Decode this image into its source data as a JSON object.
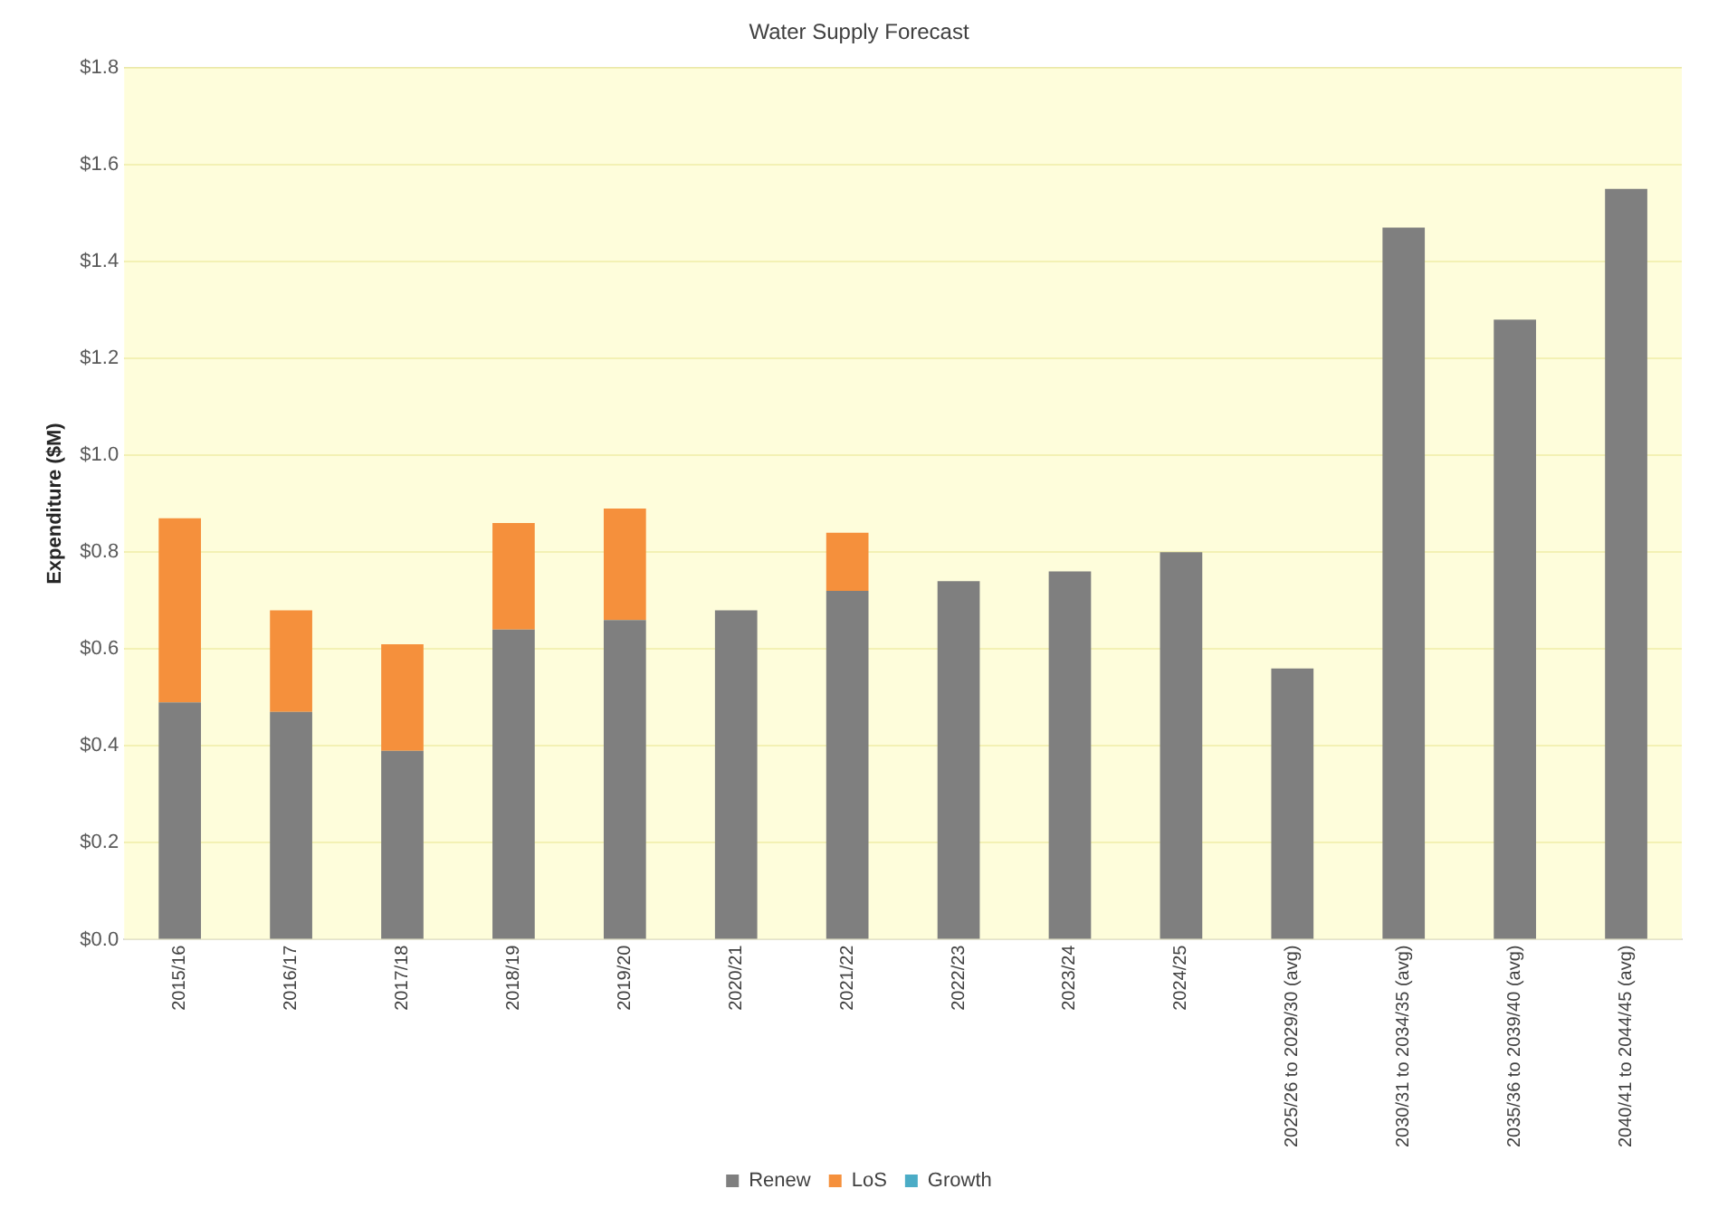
{
  "chart_data": {
    "type": "bar",
    "title": "Water Supply Forecast",
    "ylabel": "Expenditure ($M)",
    "categories": [
      "2015/16",
      "2016/17",
      "2017/18",
      "2018/19",
      "2019/20",
      "2020/21",
      "2021/22",
      "2022/23",
      "2023/24",
      "2024/25",
      "2025/26 to 2029/30 (avg)",
      "2030/31 to 2034/35 (avg)",
      "2035/36 to 2039/40 (avg)",
      "2040/41 to 2044/45 (avg)"
    ],
    "series": [
      {
        "name": "Renew",
        "color": "#7f7f7f",
        "values": [
          0.49,
          0.47,
          0.39,
          0.64,
          0.66,
          0.68,
          0.72,
          0.74,
          0.76,
          0.8,
          0.56,
          1.47,
          1.28,
          1.55
        ]
      },
      {
        "name": "LoS",
        "color": "#f5903c",
        "values": [
          0.38,
          0.21,
          0.22,
          0.22,
          0.23,
          null,
          0.12,
          null,
          null,
          null,
          null,
          null,
          null,
          null
        ]
      },
      {
        "name": "Growth",
        "color": "#4bacc6",
        "values": [
          null,
          null,
          null,
          null,
          null,
          null,
          null,
          null,
          null,
          null,
          null,
          null,
          null,
          null
        ]
      }
    ],
    "stacked": true,
    "ylim": [
      0,
      1.8
    ],
    "yticks": [
      {
        "value": 0,
        "label": "$0.0"
      },
      {
        "value": 0.2,
        "label": "$0.2"
      },
      {
        "value": 0.4,
        "label": "$0.4"
      },
      {
        "value": 0.6,
        "label": "$0.6"
      },
      {
        "value": 0.8,
        "label": "$0.8"
      },
      {
        "value": 1.0,
        "label": "$1.0"
      },
      {
        "value": 1.2,
        "label": "$1.2"
      },
      {
        "value": 1.4,
        "label": "$1.4"
      },
      {
        "value": 1.6,
        "label": "$1.6"
      },
      {
        "value": 1.8,
        "label": "$1.8"
      }
    ],
    "grid": "y",
    "legend": "bottom"
  }
}
